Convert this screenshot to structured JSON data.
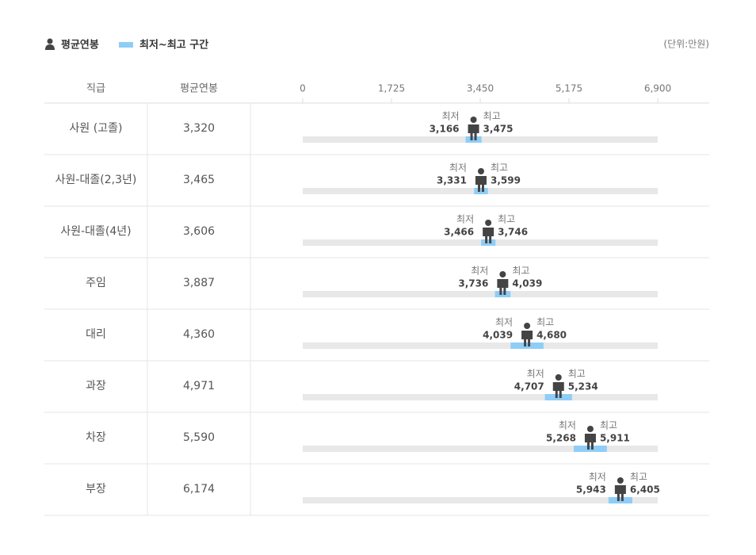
{
  "chart_data": {
    "type": "range",
    "legend": {
      "avg": "평균연봉",
      "range": "최저~최고 구간"
    },
    "unit": "(단위:만원)",
    "columns": [
      "직급",
      "평균연봉"
    ],
    "low_label": "최저",
    "high_label": "최고",
    "range_color": "#8ecdf7",
    "track_color": "#e8e8e8",
    "icon_color": "#444444",
    "xlim": [
      0,
      6900
    ],
    "xticks": [
      0,
      {
        "value": 1725,
        "label": "1,725"
      },
      {
        "value": 3450,
        "label": "3,450"
      },
      {
        "value": 5175,
        "label": "5,175"
      },
      {
        "value": 6900,
        "label": "6,900"
      }
    ],
    "categories": [
      "사원 (고졸)",
      "사원-대졸(2,3년)",
      "사원-대졸(4년)",
      "주임",
      "대리",
      "과장",
      "차장",
      "부장"
    ],
    "avg": {
      "values": [
        3320,
        3465,
        3606,
        3887,
        4360,
        4971,
        5590,
        6174
      ],
      "value_labels": [
        "3,320",
        "3,465",
        "3,606",
        "3,887",
        "4,360",
        "4,971",
        "5,590",
        "6,174"
      ]
    },
    "low": {
      "values": [
        3166,
        3331,
        3466,
        3736,
        4039,
        4707,
        5268,
        5943
      ],
      "value_labels": [
        "3,166",
        "3,331",
        "3,466",
        "3,736",
        "4,039",
        "4,707",
        "5,268",
        "5,943"
      ]
    },
    "high": {
      "values": [
        3475,
        3599,
        3746,
        4039,
        4680,
        5234,
        5911,
        6405
      ],
      "value_labels": [
        "3,475",
        "3,599",
        "3,746",
        "4,039",
        "4,680",
        "5,234",
        "5,911",
        "6,405"
      ]
    }
  }
}
